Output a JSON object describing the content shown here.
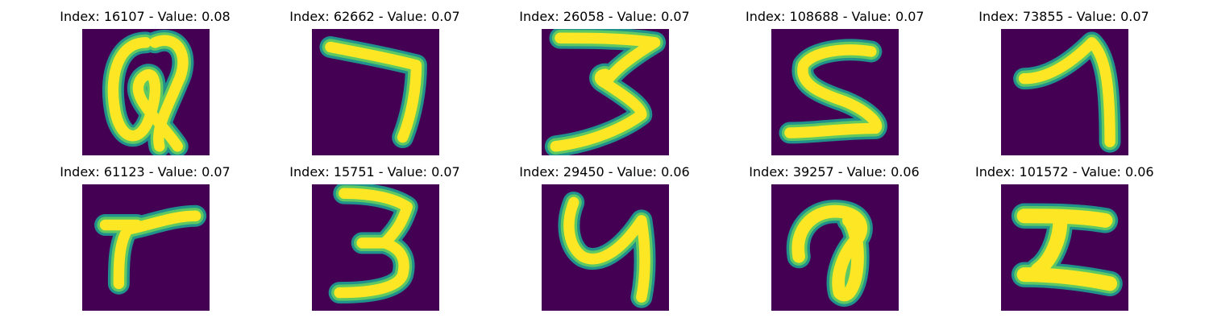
{
  "colors": {
    "background": "#440154",
    "stroke_core": "#fde725",
    "stroke_mid": "#5ec962",
    "stroke_edge": "#21918c"
  },
  "panels": [
    {
      "title": "Index: 16107 - Value: 0.08",
      "glyph": "a-loop"
    },
    {
      "title": "Index: 62662 - Value: 0.07",
      "glyph": "seven"
    },
    {
      "title": "Index: 26058 - Value: 0.07",
      "glyph": "three-wide"
    },
    {
      "title": "Index: 108688 - Value: 0.07",
      "glyph": "five"
    },
    {
      "title": "Index: 73855 - Value: 0.07",
      "glyph": "one-hook"
    },
    {
      "title": "Index: 61123 - Value: 0.07",
      "glyph": "r-stroke"
    },
    {
      "title": "Index: 15751 - Value: 0.07",
      "glyph": "three-tall"
    },
    {
      "title": "Index: 29450 - Value: 0.06",
      "glyph": "four-open"
    },
    {
      "title": "Index: 39257 - Value: 0.06",
      "glyph": "a-script"
    },
    {
      "title": "Index: 101572 - Value: 0.06",
      "glyph": "z-bold"
    }
  ]
}
